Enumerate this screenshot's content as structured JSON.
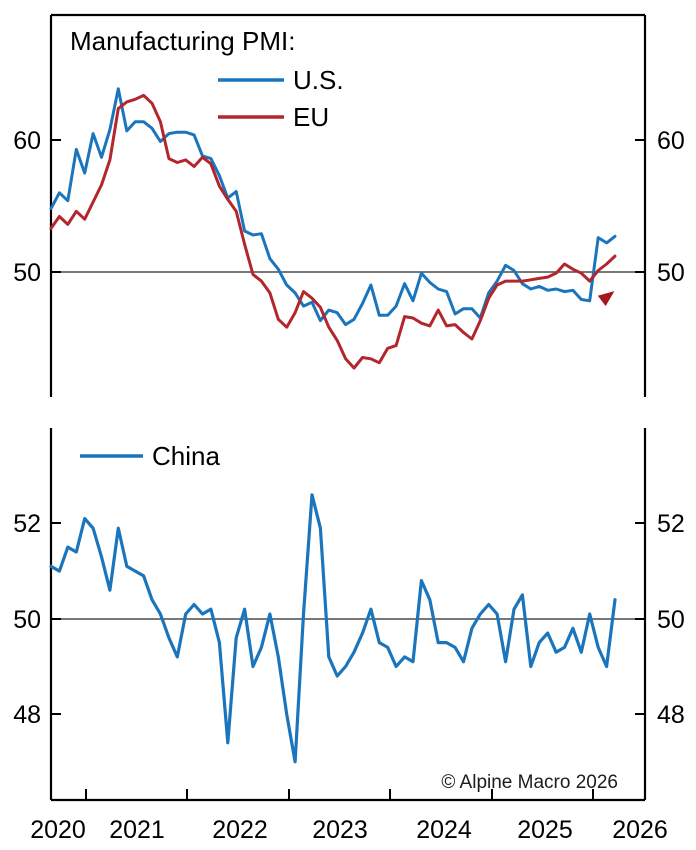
{
  "colors": {
    "us_blue": "#1b75bc",
    "eu_red": "#b2262c",
    "china_blue": "#1b75bc",
    "arrow_red": "#a5161f",
    "reference_gray": "#4c4c4c",
    "axis_black": "#000000"
  },
  "top_chart": {
    "title": "Manufacturing PMI:",
    "y_tick_labels": [
      "60",
      "50"
    ]
  },
  "bottom_chart": {
    "y_tick_labels": [
      "52",
      "50",
      "48"
    ]
  },
  "x_axis": {
    "year_labels": [
      "2020",
      "2021",
      "2022",
      "2023",
      "2024",
      "2025",
      "2026"
    ]
  },
  "footer": {
    "copyright": "© Alpine Macro 2026"
  },
  "chart_data": [
    {
      "type": "line",
      "panel": "top",
      "title": "Manufacturing PMI:",
      "x_start": "2020-07",
      "x_end": "2026-02",
      "frequency": "monthly",
      "ylim": [
        40.5,
        69.5
      ],
      "yticks": [
        50,
        60
      ],
      "reference_line": 50,
      "grid": false,
      "legend_position": "top-inside",
      "annotation": {
        "type": "curved-arrow",
        "color": "#a5161f",
        "meaning": "U-shaped bottoming and recovery of manufacturing PMIs"
      },
      "series": [
        {
          "id": "us",
          "name": "U.S.",
          "color": "#1b75bc",
          "values": [
            54.8,
            56.0,
            55.4,
            59.3,
            57.5,
            60.5,
            58.7,
            60.8,
            63.9,
            60.7,
            61.4,
            61.4,
            60.9,
            59.9,
            60.5,
            60.6,
            60.6,
            60.4,
            58.8,
            58.6,
            57.3,
            55.6,
            56.1,
            53.1,
            52.8,
            52.9,
            51.0,
            50.2,
            49.0,
            48.4,
            47.4,
            47.7,
            46.3,
            47.1,
            46.9,
            46.0,
            46.4,
            47.6,
            49.0,
            46.7,
            46.7,
            47.4,
            49.1,
            47.8,
            49.9,
            49.2,
            48.7,
            48.5,
            46.8,
            47.2,
            47.2,
            46.5,
            48.4,
            49.3,
            50.5,
            50.1,
            49.1,
            48.7,
            48.9,
            48.6,
            48.7,
            48.5,
            48.6,
            47.9,
            47.8,
            52.6,
            52.2,
            52.7
          ]
        },
        {
          "id": "eu",
          "name": "EU",
          "color": "#b2262c",
          "values": [
            53.3,
            54.2,
            53.6,
            54.6,
            54.0,
            55.3,
            56.6,
            58.5,
            62.4,
            62.9,
            63.1,
            63.4,
            62.8,
            61.4,
            58.6,
            58.3,
            58.5,
            58.0,
            58.7,
            58.2,
            56.5,
            55.5,
            54.6,
            52.1,
            49.8,
            49.3,
            48.4,
            46.4,
            45.8,
            46.9,
            48.5,
            48.0,
            47.3,
            45.8,
            44.8,
            43.4,
            42.7,
            43.5,
            43.4,
            43.1,
            44.2,
            44.4,
            46.6,
            46.5,
            46.1,
            45.9,
            47.1,
            45.9,
            46.0,
            45.4,
            44.9,
            46.3,
            48.0,
            49.0,
            49.3,
            49.3,
            49.3,
            49.4,
            49.5,
            49.6,
            49.9,
            50.6,
            50.2,
            49.9,
            49.3,
            50.1,
            50.6,
            51.2
          ]
        }
      ]
    },
    {
      "type": "line",
      "panel": "bottom",
      "x_start": "2020-07",
      "x_end": "2026-02",
      "frequency": "monthly",
      "ylim": [
        46.2,
        54.0
      ],
      "yticks": [
        48,
        50,
        52
      ],
      "reference_line": 50,
      "grid": false,
      "legend_position": "top-inside",
      "series": [
        {
          "id": "china",
          "name": "China",
          "color": "#1b75bc",
          "values": [
            51.1,
            51.0,
            51.5,
            51.4,
            52.1,
            51.9,
            51.3,
            50.6,
            51.9,
            51.1,
            51.0,
            50.9,
            50.4,
            50.1,
            49.6,
            49.2,
            50.1,
            50.3,
            50.1,
            50.2,
            49.5,
            47.4,
            49.6,
            50.2,
            49.0,
            49.4,
            50.1,
            49.2,
            48.0,
            47.0,
            50.1,
            52.6,
            51.9,
            49.2,
            48.8,
            49.0,
            49.3,
            49.7,
            50.2,
            49.5,
            49.4,
            49.0,
            49.2,
            49.1,
            50.8,
            50.4,
            49.5,
            49.5,
            49.4,
            49.1,
            49.8,
            50.1,
            50.3,
            50.1,
            49.1,
            50.2,
            50.5,
            49.0,
            49.5,
            49.7,
            49.3,
            49.4,
            49.8,
            49.3,
            50.1,
            49.4,
            49.0,
            50.4
          ]
        }
      ]
    }
  ]
}
